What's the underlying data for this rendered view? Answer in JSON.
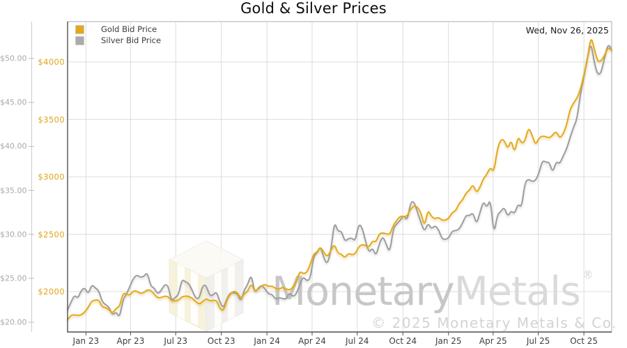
{
  "title": "Gold & Silver Prices",
  "date_label": "Wed, Nov 26, 2025",
  "legend": {
    "items": [
      {
        "label": "Gold Bid Price",
        "color": "#e6a817"
      },
      {
        "label": "Silver Bid Price",
        "color": "#ababab"
      }
    ]
  },
  "watermark": {
    "brand_part1": "Monetary",
    "brand_part2": "Metals",
    "registered": "®",
    "copyright": "© 2025 Monetary Metals & Co."
  },
  "colors": {
    "gold_line": "#e6a817",
    "silver_line": "#9d9d9d",
    "gold_axis_text": "#dfa41a",
    "silver_axis_text": "#a8a8a8",
    "gridline": "#dcdcdc",
    "border_dark": "#4f4f4f",
    "border_light": "#ababab"
  },
  "chart_data": {
    "type": "line",
    "title": "Gold & Silver Prices",
    "sampling": "weekly, late Nov 2022 through Wed Nov 26, 2025",
    "x_tick_labels": [
      "Jan 23",
      "Apr 23",
      "Jul 23",
      "Oct 23",
      "Jan 24",
      "Apr 24",
      "Jul 24",
      "Oct 24",
      "Jan 25",
      "Apr 25",
      "Jul 25",
      "Oct 25"
    ],
    "x_tick_days": [
      37,
      127,
      218,
      310,
      402,
      493,
      584,
      676,
      768,
      858,
      949,
      1041
    ],
    "span_days": 1097,
    "axes": {
      "gold": {
        "side": "left-inner",
        "tick_labels": [
          "$2000",
          "$2500",
          "$3000",
          "$3500",
          "$4000"
        ],
        "tick_values": [
          2000,
          2500,
          3000,
          3500,
          4000
        ],
        "visible_range": [
          1650,
          4350
        ],
        "gridlines": true
      },
      "silver": {
        "side": "left-outer",
        "tick_labels": [
          "$20.00",
          "$25.00",
          "$30.00",
          "$35.00",
          "$40.00",
          "$45.00",
          "$50.00"
        ],
        "tick_values": [
          20,
          25,
          30,
          35,
          40,
          45,
          50
        ],
        "visible_range": [
          18.9,
          54.2
        ],
        "gridlines": false
      }
    },
    "series": [
      {
        "name": "Gold Bid Price",
        "axis": "gold",
        "color": "#e6a817",
        "values": [
          1755,
          1798,
          1797,
          1793,
          1798,
          1824,
          1866,
          1920,
          1926,
          1928,
          1865,
          1862,
          1842,
          1811,
          1856,
          1868,
          1989,
          1978,
          1969,
          2008,
          2004,
          1983,
          1990,
          2017,
          2011,
          1977,
          1946,
          1948,
          1961,
          1958,
          1921,
          1919,
          1925,
          1955,
          1962,
          1959,
          1942,
          1913,
          1889,
          1915,
          1940,
          1919,
          1924,
          1925,
          1848,
          1833,
          1932,
          1981,
          2006,
          1992,
          1938,
          1981,
          2002,
          2072,
          2004,
          2020,
          2053,
          2063,
          2045,
          2049,
          2029,
          2018,
          2040,
          2024,
          2013,
          2035,
          2083,
          2179,
          2156,
          2165,
          2233,
          2330,
          2344,
          2392,
          2338,
          2302,
          2361,
          2415,
          2334,
          2327,
          2294,
          2333,
          2322,
          2327,
          2392,
          2411,
          2401,
          2387,
          2443,
          2431,
          2508,
          2512,
          2503,
          2497,
          2578,
          2622,
          2658,
          2654,
          2657,
          2722,
          2748,
          2737,
          2685,
          2563,
          2716,
          2654,
          2633,
          2648,
          2622,
          2621,
          2639,
          2690,
          2703,
          2771,
          2798,
          2861,
          2883,
          2936,
          2858,
          2910,
          2984,
          3022,
          3085,
          3038,
          3238,
          3327,
          3319,
          3240,
          3325,
          3203,
          3357,
          3289,
          3310,
          3432,
          3368,
          3274,
          3337,
          3356,
          3350,
          3337,
          3363,
          3398,
          3336,
          3372,
          3448,
          3587,
          3643,
          3685,
          3760,
          3886,
          4018,
          4230,
          4110,
          4000,
          4010,
          4060,
          4130,
          4100
        ]
      },
      {
        "name": "Silver Bid Price",
        "axis": "silver",
        "color": "#9d9d9d",
        "values": [
          21.4,
          22.3,
          23.1,
          22.7,
          23.7,
          23.9,
          23.2,
          24.3,
          23.9,
          23.6,
          22.3,
          22.0,
          21.7,
          20.8,
          21.2,
          20.5,
          22.6,
          23.2,
          24.1,
          25.0,
          25.4,
          25.1,
          25.2,
          25.7,
          24.1,
          23.9,
          23.2,
          23.6,
          24.3,
          24.2,
          22.4,
          22.8,
          23.1,
          24.9,
          24.6,
          24.4,
          23.6,
          22.7,
          22.7,
          24.2,
          24.2,
          23.0,
          23.1,
          23.5,
          22.2,
          21.6,
          22.7,
          23.4,
          23.3,
          23.3,
          22.3,
          23.7,
          24.3,
          25.5,
          23.3,
          23.9,
          24.2,
          23.8,
          23.2,
          23.2,
          22.6,
          22.8,
          22.7,
          22.6,
          23.4,
          22.9,
          23.2,
          24.3,
          25.2,
          24.7,
          24.9,
          27.5,
          27.9,
          28.7,
          27.2,
          26.6,
          28.2,
          31.5,
          30.3,
          30.4,
          29.2,
          29.5,
          29.6,
          29.2,
          31.2,
          30.8,
          29.2,
          27.9,
          28.5,
          27.5,
          29.0,
          29.8,
          28.8,
          27.9,
          30.7,
          31.2,
          31.6,
          32.2,
          31.5,
          33.7,
          33.7,
          32.5,
          31.3,
          30.3,
          31.3,
          30.6,
          31.0,
          30.6,
          29.5,
          29.4,
          29.6,
          30.4,
          30.4,
          30.6,
          31.3,
          32.2,
          32.1,
          32.5,
          31.1,
          32.5,
          33.8,
          33.0,
          34.1,
          29.9,
          32.2,
          32.6,
          33.1,
          32.0,
          32.7,
          32.3,
          33.5,
          33.0,
          35.9,
          36.3,
          36.0,
          36.1,
          36.9,
          38.4,
          38.2,
          38.2,
          37.0,
          38.3,
          38.0,
          38.9,
          39.7,
          41.0,
          42.2,
          43.1,
          46.0,
          47.9,
          50.1,
          51.9,
          49.5,
          48.1,
          48.4,
          50.2,
          51.7,
          51.0
        ]
      }
    ]
  }
}
